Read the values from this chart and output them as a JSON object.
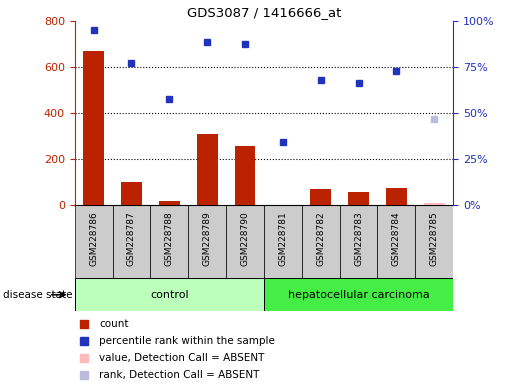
{
  "title": "GDS3087 / 1416666_at",
  "samples": [
    "GSM228786",
    "GSM228787",
    "GSM228788",
    "GSM228789",
    "GSM228790",
    "GSM228781",
    "GSM228782",
    "GSM228783",
    "GSM228784",
    "GSM228785"
  ],
  "counts": [
    670,
    100,
    18,
    310,
    260,
    2,
    70,
    60,
    75,
    8
  ],
  "percentile_ranks": [
    760,
    620,
    460,
    710,
    700,
    275,
    545,
    530,
    585,
    null
  ],
  "absent_value": [
    null,
    null,
    null,
    null,
    null,
    null,
    null,
    null,
    null,
    10
  ],
  "absent_rank": [
    null,
    null,
    null,
    null,
    null,
    null,
    null,
    null,
    null,
    375
  ],
  "control_count": 5,
  "cancer_count": 5,
  "ylim_left": [
    0,
    800
  ],
  "ylim_right": [
    0,
    100
  ],
  "yticks_left": [
    0,
    200,
    400,
    600,
    800
  ],
  "ytick_labels_right": [
    "0%",
    "25%",
    "50%",
    "75%",
    "100%"
  ],
  "yticks_right": [
    0,
    25,
    50,
    75,
    100
  ],
  "bar_color": "#bb2200",
  "dot_color": "#2233bb",
  "absent_bar_color": "#ffbbbb",
  "absent_dot_color": "#bbbbdd",
  "control_bg_light": "#bbffbb",
  "cancer_bg": "#44ee44",
  "tick_col_bg": "#cccccc",
  "dotted_lines": [
    200,
    400,
    600
  ],
  "legend_items": [
    {
      "label": "count",
      "color": "#bb2200"
    },
    {
      "label": "percentile rank within the sample",
      "color": "#2233bb"
    },
    {
      "label": "value, Detection Call = ABSENT",
      "color": "#ffbbbb"
    },
    {
      "label": "rank, Detection Call = ABSENT",
      "color": "#bbbbdd"
    }
  ]
}
